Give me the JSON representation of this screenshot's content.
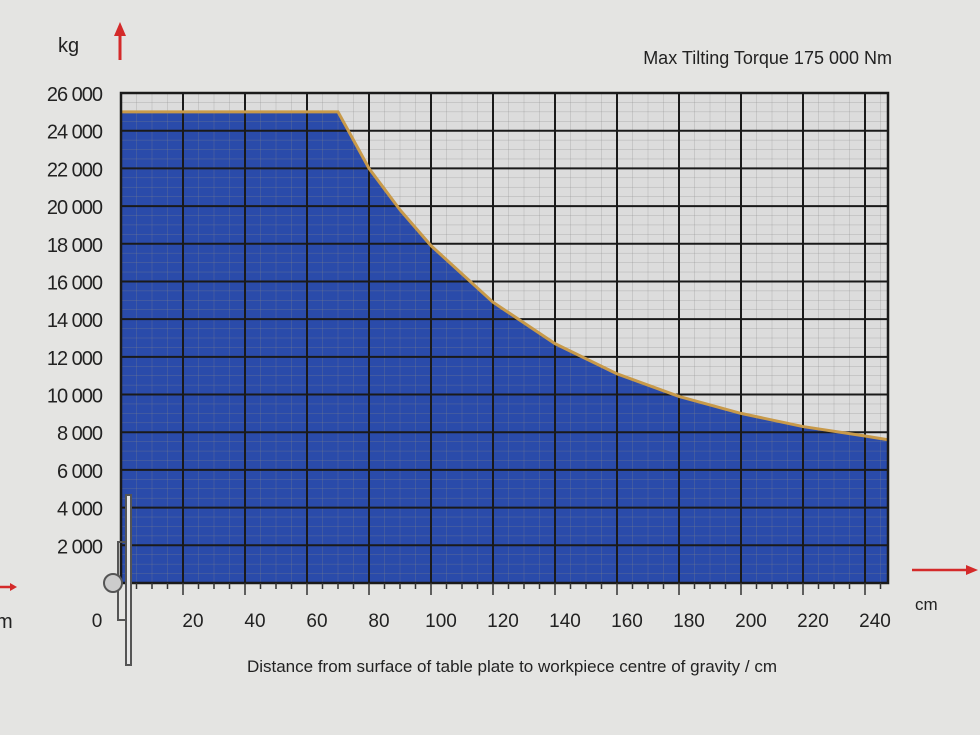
{
  "chart_data": {
    "type": "area",
    "title": "Max Tilting Torque 175 000 Nm",
    "xlabel": "Distance from surface of table plate to workpiece centre of gravity / cm",
    "xunit": "cm",
    "ylabel": "kg",
    "left_edge_text": "m",
    "xlim": [
      0,
      250
    ],
    "ylim": [
      0,
      26000
    ],
    "xticks": [
      0,
      20,
      40,
      60,
      80,
      100,
      120,
      140,
      160,
      180,
      200,
      220,
      240
    ],
    "yticks": [
      2000,
      4000,
      6000,
      8000,
      10000,
      12000,
      14000,
      16000,
      18000,
      20000,
      22000,
      24000,
      26000
    ],
    "ytick_labels": [
      "2 000",
      "4 000",
      "6 000",
      "8 000",
      "10 000",
      "12 000",
      "14 000",
      "16 000",
      "18 000",
      "20 000",
      "22 000",
      "24 000",
      "26 000"
    ],
    "grid": true,
    "x": [
      0,
      70,
      80,
      90,
      100,
      120,
      140,
      160,
      180,
      200,
      220,
      240,
      250
    ],
    "y": [
      25000,
      25000,
      22000,
      19800,
      17900,
      14900,
      12700,
      11100,
      9900,
      9000,
      8300,
      7800,
      7600
    ],
    "colors": {
      "fill": "#1c3fa6",
      "edge": "#c89a4a",
      "arrow": "#d42a2a",
      "grid": "#1a1a1a",
      "plot_bg": "#dcdcdc"
    }
  }
}
